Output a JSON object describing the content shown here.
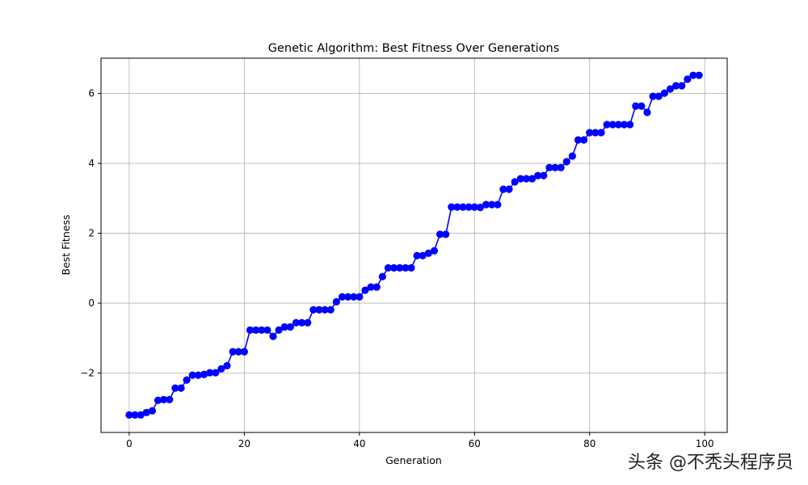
{
  "chart_data": {
    "type": "line",
    "title": "Genetic Algorithm: Best Fitness Over Generations",
    "xlabel": "Generation",
    "ylabel": "Best Fitness",
    "xlim": [
      -4.9,
      103.9
    ],
    "ylim": [
      -3.7,
      7.01
    ],
    "xticks": [
      0,
      20,
      40,
      60,
      80,
      100
    ],
    "yticks": [
      -2,
      0,
      2,
      4,
      6
    ],
    "xtick_labels": [
      "0",
      "20",
      "40",
      "60",
      "80",
      "100"
    ],
    "ytick_labels": [
      "−2",
      "0",
      "2",
      "4",
      "6"
    ],
    "grid": true,
    "color": "#0000ff",
    "marker": "circle",
    "x": [
      0,
      1,
      2,
      3,
      4,
      5,
      6,
      7,
      8,
      9,
      10,
      11,
      12,
      13,
      14,
      15,
      16,
      17,
      18,
      19,
      20,
      21,
      22,
      23,
      24,
      25,
      26,
      27,
      28,
      29,
      30,
      31,
      32,
      33,
      34,
      35,
      36,
      37,
      38,
      39,
      40,
      41,
      42,
      43,
      44,
      45,
      46,
      47,
      48,
      49,
      50,
      51,
      52,
      53,
      54,
      55,
      56,
      57,
      58,
      59,
      60,
      61,
      62,
      63,
      64,
      65,
      66,
      67,
      68,
      69,
      70,
      71,
      72,
      73,
      74,
      75,
      76,
      77,
      78,
      79,
      80,
      81,
      82,
      83,
      84,
      85,
      86,
      87,
      88,
      89,
      90,
      91,
      92,
      93,
      94,
      95,
      96,
      97,
      98,
      99
    ],
    "y": [
      -3.2,
      -3.2,
      -3.2,
      -3.13,
      -3.08,
      -2.78,
      -2.76,
      -2.76,
      -2.43,
      -2.43,
      -2.2,
      -2.06,
      -2.06,
      -2.04,
      -1.99,
      -1.99,
      -1.88,
      -1.79,
      -1.39,
      -1.39,
      -1.39,
      -0.77,
      -0.77,
      -0.77,
      -0.77,
      -0.95,
      -0.77,
      -0.68,
      -0.68,
      -0.56,
      -0.56,
      -0.56,
      -0.19,
      -0.19,
      -0.19,
      -0.19,
      0.04,
      0.18,
      0.18,
      0.18,
      0.18,
      0.37,
      0.46,
      0.46,
      0.76,
      1.01,
      1.01,
      1.01,
      1.01,
      1.01,
      1.36,
      1.36,
      1.43,
      1.5,
      1.97,
      1.97,
      2.75,
      2.75,
      2.75,
      2.75,
      2.75,
      2.74,
      2.82,
      2.82,
      2.82,
      3.26,
      3.26,
      3.47,
      3.56,
      3.56,
      3.56,
      3.65,
      3.65,
      3.88,
      3.88,
      3.88,
      4.05,
      4.21,
      4.67,
      4.67,
      4.88,
      4.88,
      4.88,
      5.11,
      5.11,
      5.11,
      5.11,
      5.11,
      5.64,
      5.64,
      5.46,
      5.92,
      5.92,
      6.01,
      6.13,
      6.22,
      6.22,
      6.41,
      6.52,
      6.52
    ]
  },
  "watermark": "头条 @不秃头程序员"
}
